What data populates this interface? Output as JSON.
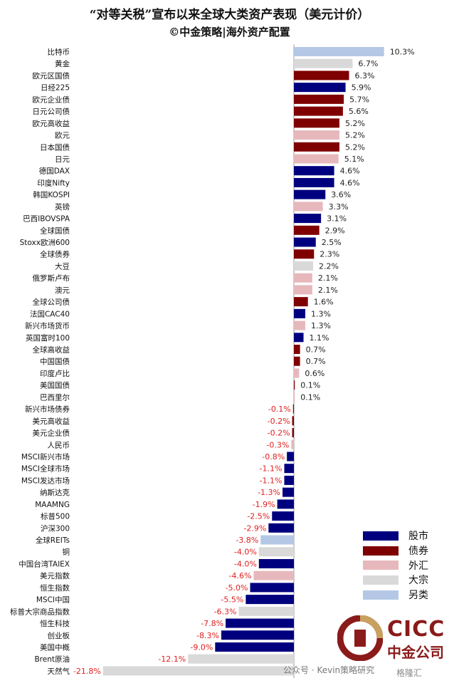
{
  "titles": {
    "line1": "“对等关税”宣布以来全球大类资产表现（美元计价）",
    "line2": "©中金策略|海外资产配置"
  },
  "colors": {
    "股市": "#00007f",
    "债券": "#7f0000",
    "外汇": "#e6b8bc",
    "大宗": "#d9d9d9",
    "另类": "#b4c8e6",
    "positive_label": "#222222",
    "negative_label": "#e02020"
  },
  "legend": [
    {
      "key": "股市",
      "label": "股市"
    },
    {
      "key": "债券",
      "label": "债券"
    },
    {
      "key": "外汇",
      "label": "外汇"
    },
    {
      "key": "大宗",
      "label": "大宗"
    },
    {
      "key": "另类",
      "label": "另类"
    }
  ],
  "chart_data": {
    "type": "bar",
    "orientation": "horizontal",
    "unit": "%",
    "xlim": [
      -21.8,
      10.3
    ],
    "categories": [
      "比特币",
      "黄金",
      "欧元区国债",
      "日经225",
      "欧元企业债",
      "日元公司债",
      "欧元高收益",
      "欧元",
      "日本国债",
      "日元",
      "德国DAX",
      "印度Nifty",
      "韩国KOSPI",
      "英镑",
      "巴西IBOVSPA",
      "全球国债",
      "Stoxx欧洲600",
      "全球债券",
      "大豆",
      "俄罗斯卢布",
      "澳元",
      "全球公司债",
      "法国CAC40",
      "新兴市场货币",
      "英国富时100",
      "全球高收益",
      "中国国债",
      "印度卢比",
      "美国国债",
      "巴西里尔",
      "新兴市场债券",
      "美元高收益",
      "美元企业债",
      "人民币",
      "MSCI新兴市场",
      "MSCI全球市场",
      "MSCI发达市场",
      "纳斯达克",
      "MAAMNG",
      "标普500",
      "沪深300",
      "全球REITs",
      "铜",
      "中国台湾TAIEX",
      "美元指数",
      "恒生指数",
      "MSCI中国",
      "标普大宗商品指数",
      "恒生科技",
      "创业板",
      "美国中概",
      "Brent原油",
      "天然气"
    ],
    "values": [
      10.3,
      6.7,
      6.3,
      5.9,
      5.7,
      5.6,
      5.2,
      5.2,
      5.2,
      5.1,
      4.6,
      4.6,
      3.6,
      3.3,
      3.1,
      2.9,
      2.5,
      2.3,
      2.2,
      2.1,
      2.1,
      1.6,
      1.3,
      1.3,
      1.1,
      0.7,
      0.7,
      0.6,
      0.1,
      0.1,
      -0.1,
      -0.2,
      -0.2,
      -0.3,
      -0.8,
      -1.1,
      -1.1,
      -1.3,
      -1.9,
      -2.5,
      -2.9,
      -3.8,
      -4.0,
      -4.0,
      -4.6,
      -5.0,
      -5.5,
      -6.3,
      -7.8,
      -8.3,
      -9.0,
      -12.1,
      -21.8
    ],
    "labels": [
      "10.3%",
      "6.7%",
      "6.3%",
      "5.9%",
      "5.7%",
      "5.6%",
      "5.2%",
      "5.2%",
      "5.2%",
      "5.1%",
      "4.6%",
      "4.6%",
      "3.6%",
      "3.3%",
      "3.1%",
      "2.9%",
      "2.5%",
      "2.3%",
      "2.2%",
      "2.1%",
      "2.1%",
      "1.6%",
      "1.3%",
      "1.3%",
      "1.1%",
      "0.7%",
      "0.7%",
      "0.6%",
      "0.1%",
      "0.1%",
      "-0.1%",
      "-0.2%",
      "-0.2%",
      "-0.3%",
      "-0.8%",
      "-1.1%",
      "-1.1%",
      "-1.3%",
      "-1.9%",
      "-2.5%",
      "-2.9%",
      "-3.8%",
      "-4.0%",
      "-4.0%",
      "-4.6%",
      "-5.0%",
      "-5.5%",
      "-6.3%",
      "-7.8%",
      "-8.3%",
      "-9.0%",
      "-12.1%",
      "-21.8%"
    ],
    "asset_class": [
      "另类",
      "大宗",
      "债券",
      "股市",
      "债券",
      "债券",
      "债券",
      "外汇",
      "债券",
      "外汇",
      "股市",
      "股市",
      "股市",
      "外汇",
      "股市",
      "债券",
      "股市",
      "债券",
      "大宗",
      "外汇",
      "外汇",
      "债券",
      "股市",
      "外汇",
      "股市",
      "债券",
      "债券",
      "外汇",
      "债券",
      "外汇",
      "债券",
      "债券",
      "债券",
      "外汇",
      "股市",
      "股市",
      "股市",
      "股市",
      "股市",
      "股市",
      "股市",
      "另类",
      "大宗",
      "股市",
      "外汇",
      "股市",
      "股市",
      "大宗",
      "股市",
      "股市",
      "股市",
      "大宗",
      "大宗"
    ]
  },
  "logo": {
    "line1": "CICC",
    "line2": "中金公司"
  },
  "watermark": {
    "text": "公众号 · Kevin策略研究",
    "icon_text": "格隆汇"
  }
}
